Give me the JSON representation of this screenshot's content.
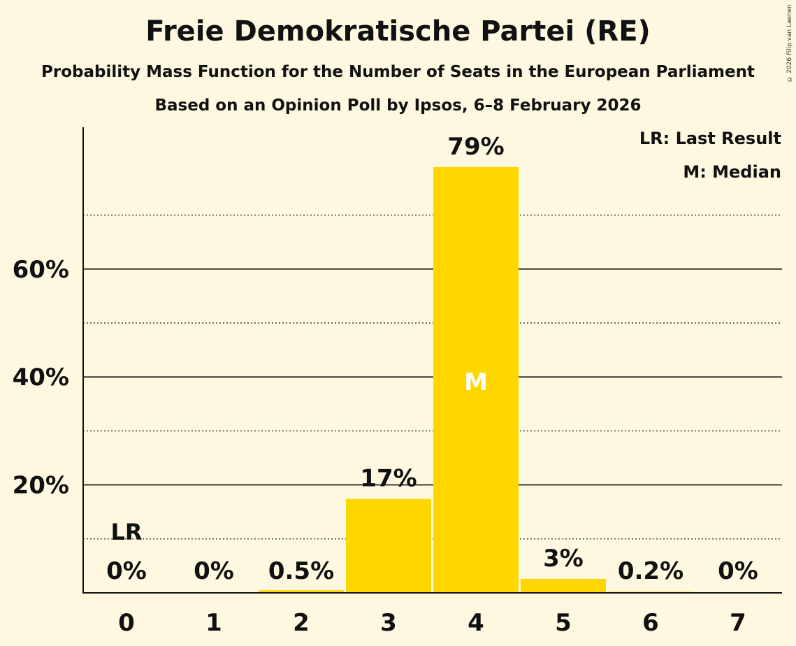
{
  "chart_data": {
    "type": "bar",
    "title": "Freie Demokratische Partei (RE)",
    "subtitle": "Probability Mass Function for the Number of Seats in the European Parliament",
    "subtitle2": "Based on an Opinion Poll by Ipsos, 6–8 February 2026",
    "categories": [
      "0",
      "1",
      "2",
      "3",
      "4",
      "5",
      "6",
      "7"
    ],
    "values": [
      0,
      0,
      0.5,
      17.4,
      78.9,
      2.6,
      0.2,
      0
    ],
    "value_labels": [
      "0%",
      "0%",
      "0.5%",
      "17%",
      "79%",
      "3%",
      "0.2%",
      "0%"
    ],
    "ylim": [
      0,
      86
    ],
    "y_ticks": [
      20,
      40,
      60
    ],
    "y_tick_labels": [
      "20%",
      "40%",
      "60%"
    ],
    "minor_gridlines": [
      10,
      30,
      50,
      70
    ],
    "last_result_index": 0,
    "last_result_marker": "LR",
    "median_index": 4,
    "median_marker": "M",
    "legend": [
      "LR: Last Result",
      "M: Median"
    ],
    "legend_position": "top-right",
    "bar_color": "#FFD700",
    "background_color": "#FFF8E1",
    "copyright": "© 2026 Filip van Laenen"
  }
}
